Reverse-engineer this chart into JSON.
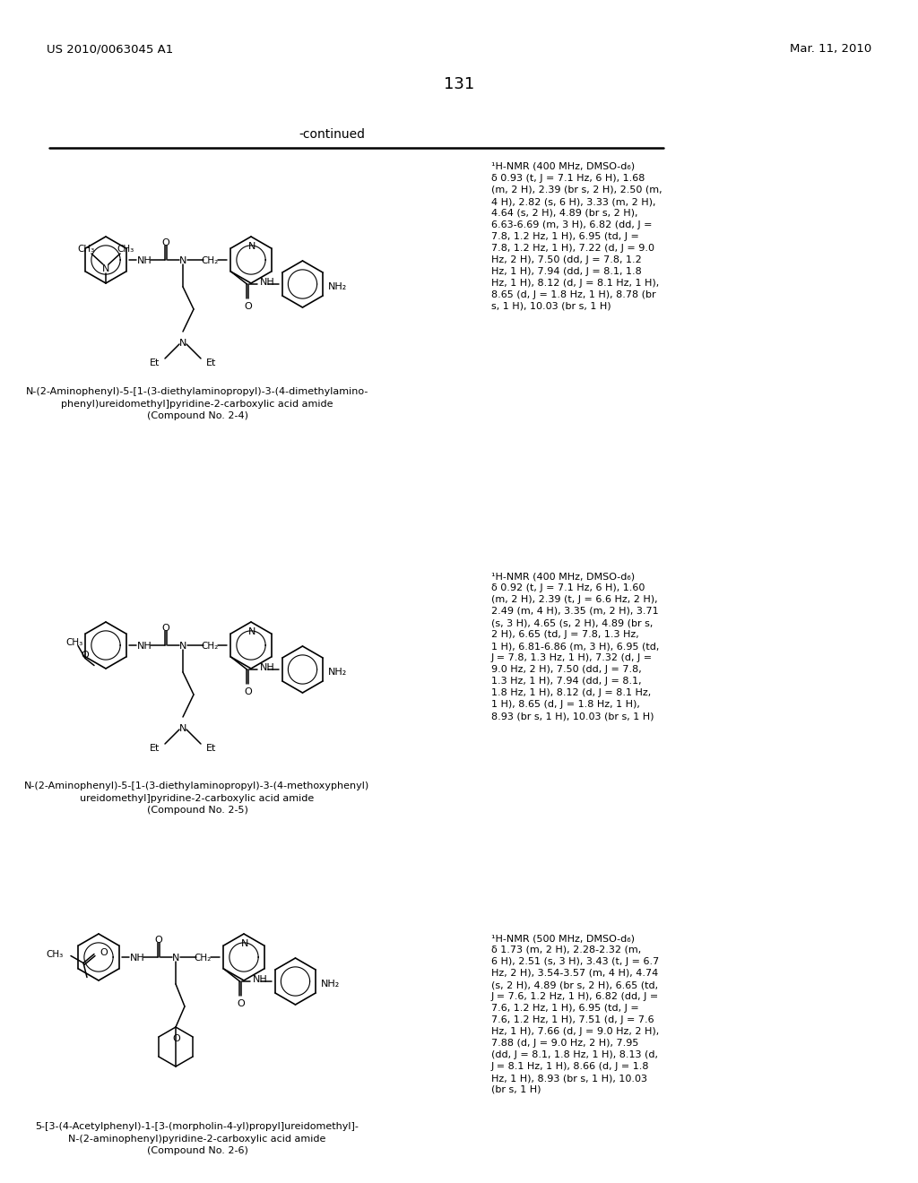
{
  "background_color": "#ffffff",
  "header_left": "US 2010/0063045 A1",
  "header_right": "Mar. 11, 2010",
  "page_number": "131",
  "continued_text": "-continued",
  "compound_24": {
    "name_lines": [
      "N-(2-Aminophenyl)-5-[1-(3-diethylaminopropyl)-3-(4-dimethylamino-",
      "phenyl)ureidomethyl]pyridine-2-carboxylic acid amide",
      "(Compound No. 2-4)"
    ],
    "nmr_lines": [
      "¹H-NMR (400 MHz, DMSO-d₆)",
      "δ 0.93 (t, J = 7.1 Hz, 6 H), 1.68",
      "(m, 2 H), 2.39 (br s, 2 H), 2.50 (m,",
      "4 H), 2.82 (s, 6 H), 3.33 (m, 2 H),",
      "4.64 (s, 2 H), 4.89 (br s, 2 H),",
      "6.63-6.69 (m, 3 H), 6.82 (dd, J =",
      "7.8, 1.2 Hz, 1 H), 6.95 (td, J =",
      "7.8, 1.2 Hz, 1 H), 7.22 (d, J = 9.0",
      "Hz, 2 H), 7.50 (dd, J = 7.8, 1.2",
      "Hz, 1 H), 7.94 (dd, J = 8.1, 1.8",
      "Hz, 1 H), 8.12 (d, J = 8.1 Hz, 1 H),",
      "8.65 (d, J = 1.8 Hz, 1 H), 8.78 (br",
      "s, 1 H), 10.03 (br s, 1 H)"
    ]
  },
  "compound_25": {
    "name_lines": [
      "N-(2-Aminophenyl)-5-[1-(3-diethylaminopropyl)-3-(4-methoxyphenyl)",
      "ureidomethyl]pyridine-2-carboxylic acid amide",
      "(Compound No. 2-5)"
    ],
    "nmr_lines": [
      "¹H-NMR (400 MHz, DMSO-d₆)",
      "δ 0.92 (t, J = 7.1 Hz, 6 H), 1.60",
      "(m, 2 H), 2.39 (t, J = 6.6 Hz, 2 H),",
      "2.49 (m, 4 H), 3.35 (m, 2 H), 3.71",
      "(s, 3 H), 4.65 (s, 2 H), 4.89 (br s,",
      "2 H), 6.65 (td, J = 7.8, 1.3 Hz,",
      "1 H), 6.81-6.86 (m, 3 H), 6.95 (td,",
      "J = 7.8, 1.3 Hz, 1 H), 7.32 (d, J =",
      "9.0 Hz, 2 H), 7.50 (dd, J = 7.8,",
      "1.3 Hz, 1 H), 7.94 (dd, J = 8.1,",
      "1.8 Hz, 1 H), 8.12 (d, J = 8.1 Hz,",
      "1 H), 8.65 (d, J = 1.8 Hz, 1 H),",
      "8.93 (br s, 1 H), 10.03 (br s, 1 H)"
    ]
  },
  "compound_26": {
    "name_lines": [
      "5-[3-(4-Acetylphenyl)-1-[3-(morpholin-4-yl)propyl]ureidomethyl]-",
      "N-(2-aminophenyl)pyridine-2-carboxylic acid amide",
      "(Compound No. 2-6)"
    ],
    "nmr_lines": [
      "¹H-NMR (500 MHz, DMSO-d₆)",
      "δ 1.73 (m, 2 H), 2.28-2.32 (m,",
      "6 H), 2.51 (s, 3 H), 3.43 (t, J = 6.7",
      "Hz, 2 H), 3.54-3.57 (m, 4 H), 4.74",
      "(s, 2 H), 4.89 (br s, 2 H), 6.65 (td,",
      "J = 7.6, 1.2 Hz, 1 H), 6.82 (dd, J =",
      "7.6, 1.2 Hz, 1 H), 6.95 (td, J =",
      "7.6, 1.2 Hz, 1 H), 7.51 (d, J = 7.6",
      "Hz, 1 H), 7.66 (d, J = 9.0 Hz, 2 H),",
      "7.88 (d, J = 9.0 Hz, 2 H), 7.95",
      "(dd, J = 8.1, 1.8 Hz, 1 H), 8.13 (d,",
      "J = 8.1 Hz, 1 H), 8.66 (d, J = 1.8",
      "Hz, 1 H), 8.93 (br s, 1 H), 10.03",
      "(br s, 1 H)"
    ]
  }
}
